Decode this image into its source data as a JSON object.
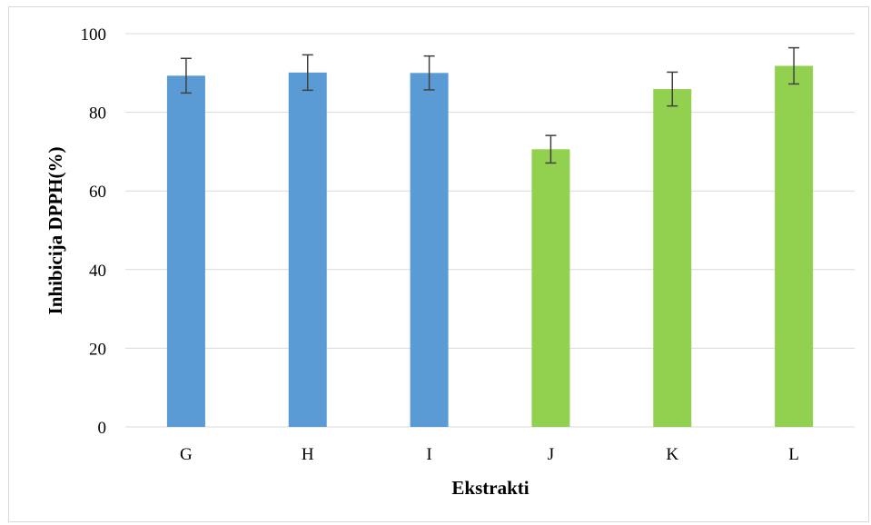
{
  "chart_data": {
    "type": "bar",
    "xlabel": "Ekstrakti",
    "ylabel": "Inhibicija DPPH(%)",
    "ylim": [
      0,
      100
    ],
    "yticks": [
      0,
      20,
      40,
      60,
      80,
      100
    ],
    "grid": true,
    "categories": [
      "G",
      "H",
      "I",
      "J",
      "K",
      "L"
    ],
    "values": [
      89.3,
      90.1,
      90.0,
      70.6,
      85.9,
      91.8
    ],
    "errors": [
      4.4,
      4.5,
      4.3,
      3.5,
      4.3,
      4.6
    ],
    "colors": [
      "#5b9bd5",
      "#5b9bd5",
      "#5b9bd5",
      "#92d050",
      "#92d050",
      "#92d050"
    ],
    "error_bar_color": "#404040",
    "grid_color": "#d9d9d9"
  }
}
